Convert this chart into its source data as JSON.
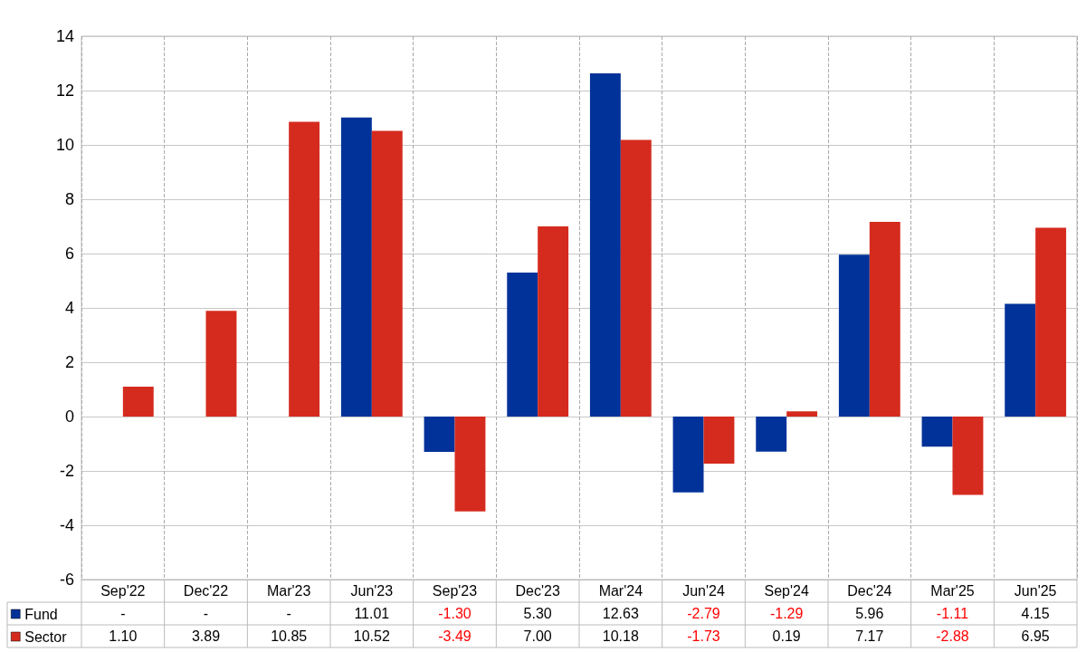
{
  "chart_data": {
    "type": "bar",
    "categories": [
      "Sep'22",
      "Dec'22",
      "Mar'23",
      "Jun'23",
      "Sep'23",
      "Dec'23",
      "Mar'24",
      "Jun'24",
      "Sep'24",
      "Dec'24",
      "Mar'25",
      "Jun'25"
    ],
    "series": [
      {
        "name": "Fund",
        "color": "#003299",
        "values": [
          null,
          null,
          null,
          11.01,
          -1.3,
          5.3,
          12.63,
          -2.79,
          -1.29,
          5.96,
          -1.11,
          4.15
        ],
        "value_labels": [
          "-",
          "-",
          "-",
          "11.01",
          "-1.30",
          "5.30",
          "12.63",
          "-2.79",
          "-1.29",
          "5.96",
          "-1.11",
          "4.15"
        ]
      },
      {
        "name": "Sector",
        "color": "#d52b1e",
        "values": [
          1.1,
          3.89,
          10.85,
          10.52,
          -3.49,
          7.0,
          10.18,
          -1.73,
          0.19,
          7.17,
          -2.88,
          6.95
        ],
        "value_labels": [
          "1.10",
          "3.89",
          "10.85",
          "10.52",
          "-3.49",
          "7.00",
          "10.18",
          "-1.73",
          "0.19",
          "7.17",
          "-2.88",
          "6.95"
        ]
      }
    ],
    "ylim": [
      -6,
      14
    ],
    "yticks": [
      -6,
      -4,
      -2,
      0,
      2,
      4,
      6,
      8,
      10,
      12,
      14
    ],
    "grid": true,
    "legend": "bottom left"
  }
}
